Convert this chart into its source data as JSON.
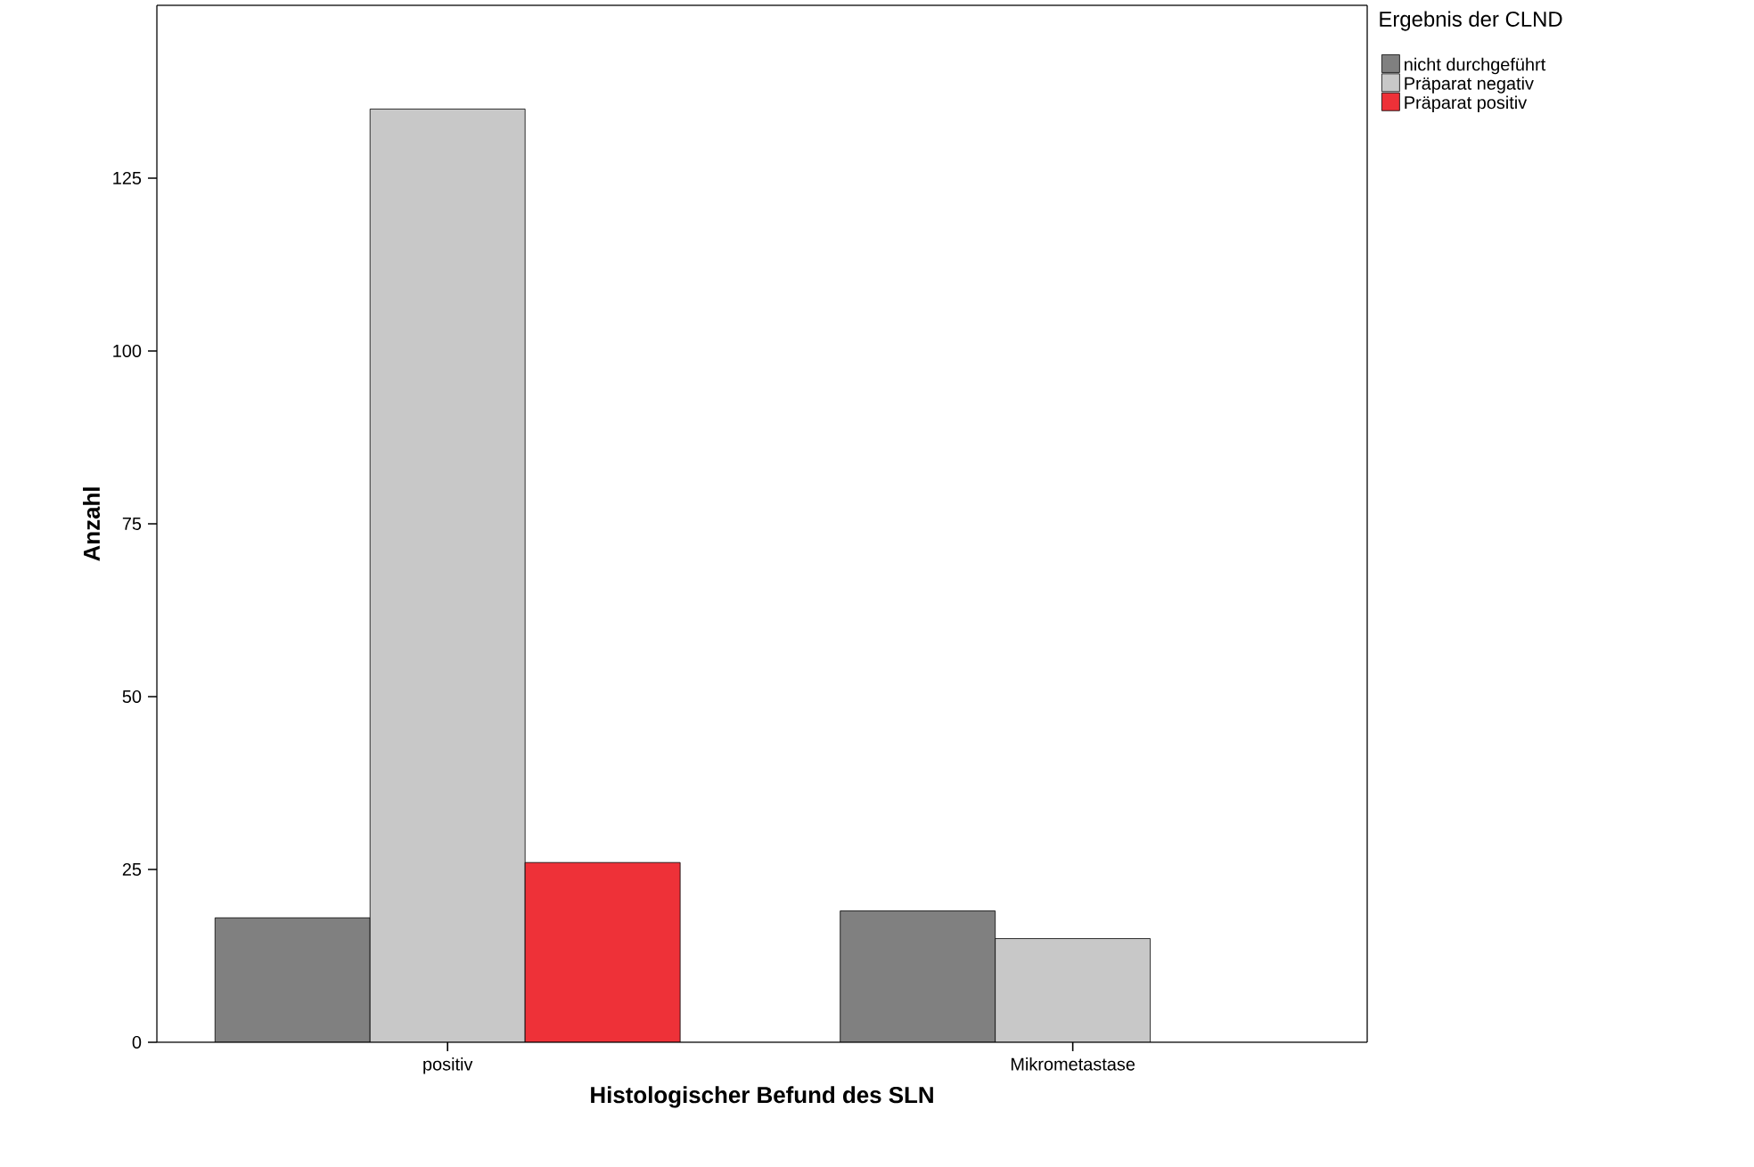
{
  "chart_data": {
    "type": "bar",
    "xlabel": "Histologischer Befund des SLN",
    "ylabel": "Anzahl",
    "legend_title": "Ergebnis der CLND",
    "categories": [
      "positiv",
      "Mikrometastase"
    ],
    "series": [
      {
        "name": "nicht durchgeführt",
        "color": "#808080",
        "values": [
          18,
          19
        ]
      },
      {
        "name": "Präparat negativ",
        "color": "#c8c8c8",
        "values": [
          135,
          15
        ]
      },
      {
        "name": "Präparat positiv",
        "color": "#ee3138",
        "values": [
          26,
          null
        ]
      }
    ],
    "ylim": [
      0,
      150
    ],
    "yticks": [
      0,
      25,
      50,
      75,
      100,
      125
    ],
    "grid": false,
    "legend": "top right"
  }
}
